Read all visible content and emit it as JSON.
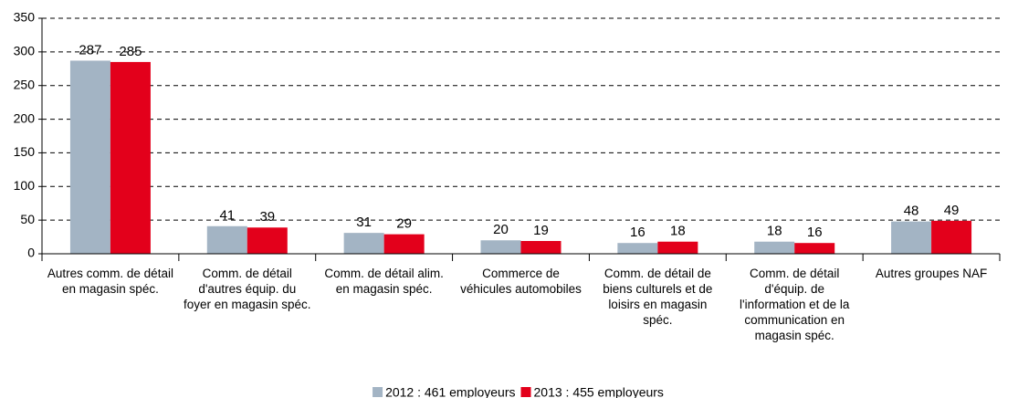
{
  "chart_data": {
    "type": "bar",
    "categories": [
      "Autres comm. de détail en magasin spéc.",
      "Comm. de détail d'autres équip. du foyer en magasin spéc.",
      "Comm. de détail alim. en magasin spéc.",
      "Commerce de véhicules automobiles",
      "Comm. de détail de biens culturels et de loisirs en magasin spéc.",
      "Comm. de détail d'équip. de l'information et de la communication en magasin spéc.",
      "Autres groupes NAF"
    ],
    "series": [
      {
        "name": "2012 : 461 employeurs",
        "color": "#a3b4c4",
        "values": [
          287,
          41,
          31,
          20,
          16,
          18,
          48
        ]
      },
      {
        "name": "2013 : 455 employeurs",
        "color": "#e3001b",
        "values": [
          285,
          39,
          29,
          19,
          18,
          16,
          49
        ]
      }
    ],
    "ylim": [
      0,
      350
    ],
    "yticks": [
      0,
      50,
      100,
      150,
      200,
      250,
      300,
      350
    ],
    "grid": true,
    "legend": "bottom"
  }
}
